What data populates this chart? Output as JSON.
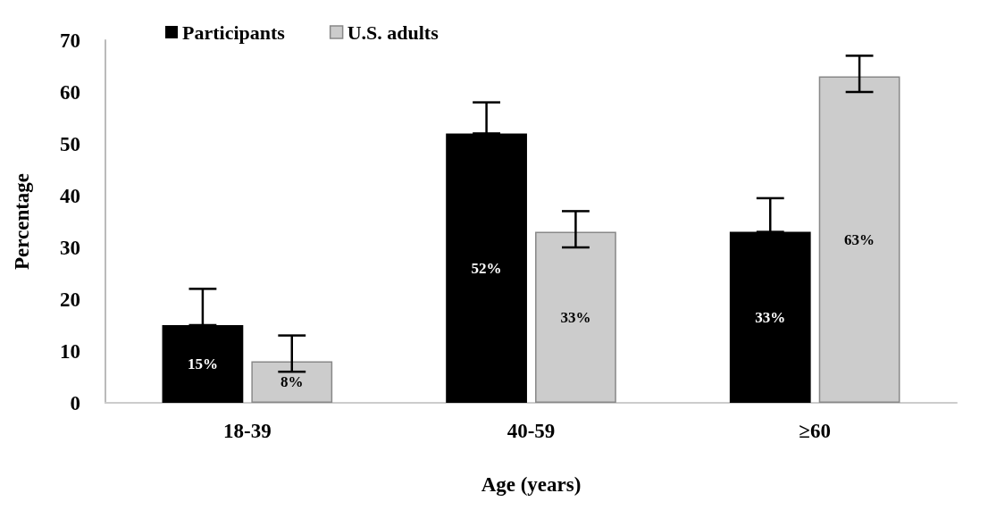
{
  "chart_data": {
    "type": "bar",
    "xlabel": "Age (years)",
    "ylabel": "Percentage",
    "categories": [
      "18-39",
      "40-59",
      "≥60"
    ],
    "series": [
      {
        "name": "Participants",
        "color": "#000000",
        "values": [
          15,
          52,
          33
        ],
        "errors": [
          [
            15,
            22
          ],
          [
            52,
            58
          ],
          [
            33,
            39.5
          ]
        ],
        "value_labels": [
          "15%",
          "52%",
          "33%"
        ]
      },
      {
        "name": "U.S. adults",
        "color": "#cccccc",
        "values": [
          8,
          33,
          63
        ],
        "errors": [
          [
            6,
            13
          ],
          [
            30,
            37
          ],
          [
            60,
            67
          ]
        ],
        "value_labels": [
          "8%",
          "33%",
          "63%"
        ]
      }
    ],
    "ylim": [
      0,
      70
    ],
    "yticks": [
      0,
      10,
      20,
      30,
      40,
      50,
      60,
      70
    ],
    "grid": false,
    "legend": "top left"
  }
}
